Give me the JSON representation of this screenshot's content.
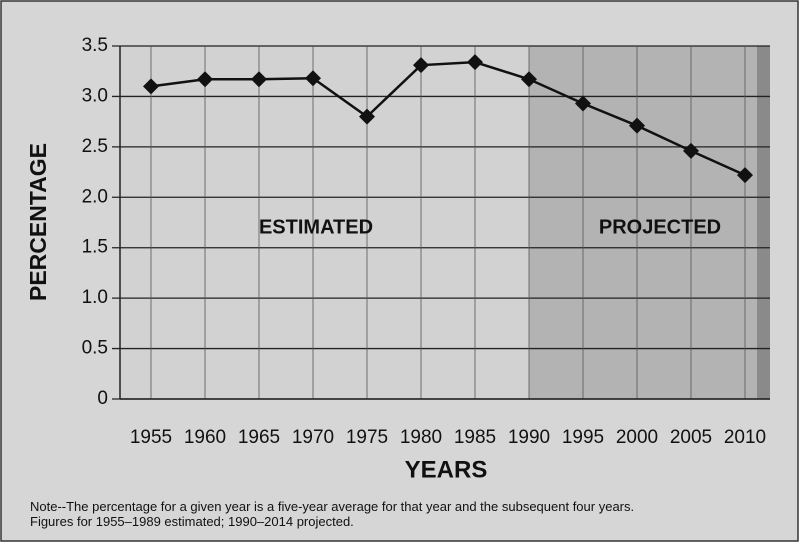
{
  "chart_data": {
    "type": "line",
    "categories": [
      "1955",
      "1960",
      "1965",
      "1970",
      "1975",
      "1980",
      "1985",
      "1990",
      "1995",
      "2000",
      "2005",
      "2010"
    ],
    "values": [
      3.1,
      3.17,
      3.17,
      3.18,
      2.8,
      3.31,
      3.34,
      3.17,
      2.93,
      2.71,
      2.46,
      2.22
    ],
    "color": "#111111",
    "ylim": [
      0,
      3.5
    ],
    "yticks": [
      0,
      0.5,
      {
        "value": 1,
        "label": "1.0"
      },
      1.5,
      {
        "value": 2,
        "label": "2.0"
      },
      2.5,
      {
        "value": 3,
        "label": "3.0"
      },
      3.5
    ],
    "grid": true,
    "xlabel": "YEARS",
    "ylabel": "PERCENTAGE",
    "annotations": [
      {
        "text": "ESTIMATED"
      },
      {
        "text": "PROJECTED",
        "shade_from": "1990"
      }
    ],
    "note": [
      "Note--The percentage for a given year is a five-year average for that year and the subsequent four years.",
      "Figures for 1955–1989 estimated; 1990–2014 projected."
    ]
  }
}
